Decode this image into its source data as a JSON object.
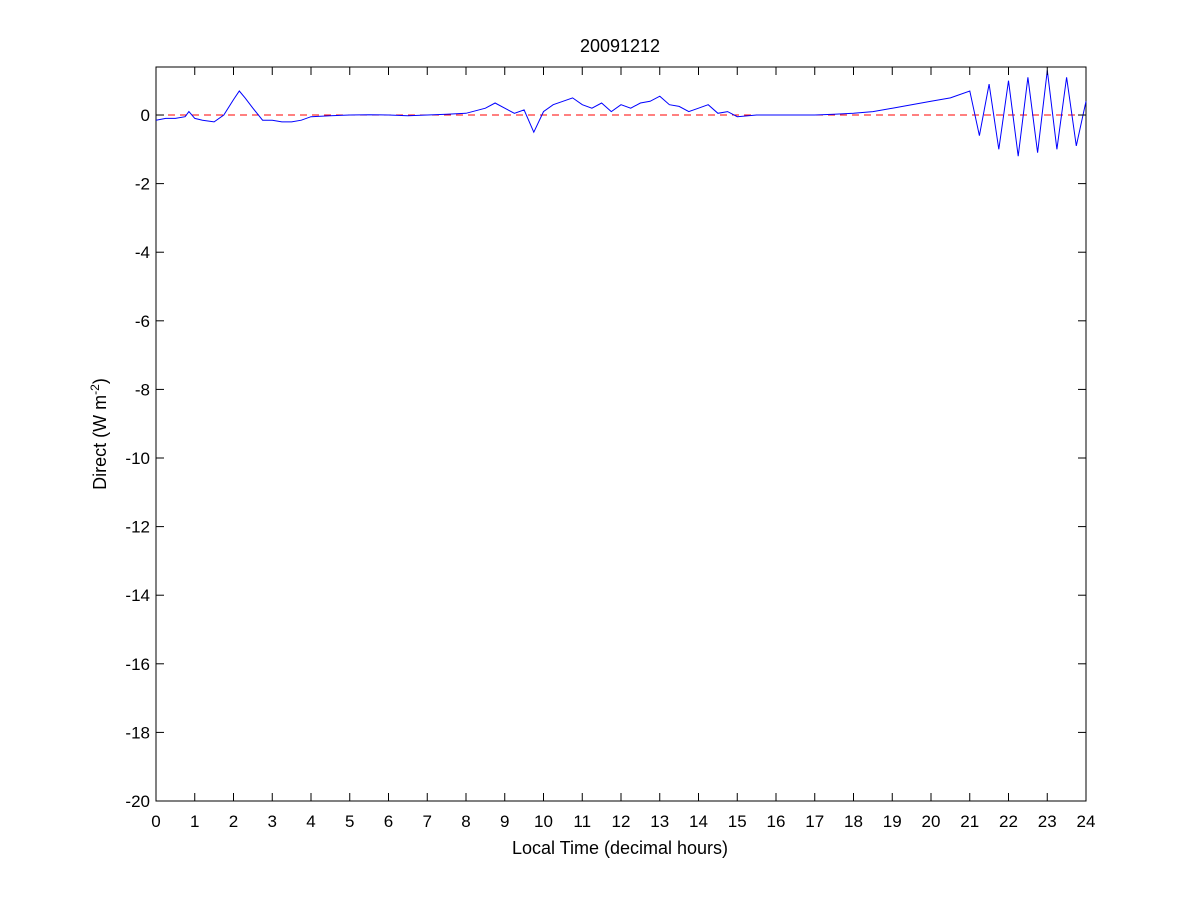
{
  "chart_data": {
    "type": "line",
    "title": "20091212",
    "xlabel": "Local Time (decimal hours)",
    "ylabel": {
      "base": "Direct (W m",
      "superscript": "-2",
      "close": ")"
    },
    "xlim": [
      0,
      24
    ],
    "ylim": [
      -20,
      1.4
    ],
    "x_ticks": [
      0,
      1,
      2,
      3,
      4,
      5,
      6,
      7,
      8,
      9,
      10,
      11,
      12,
      13,
      14,
      15,
      16,
      17,
      18,
      19,
      20,
      21,
      22,
      23,
      24
    ],
    "y_ticks": [
      0,
      -2,
      -4,
      -6,
      -8,
      -10,
      -12,
      -14,
      -16,
      -18,
      -20
    ],
    "grid": false,
    "legend": "none",
    "reference_line": {
      "y": 0,
      "style": "dashed",
      "color": "#ff0000"
    },
    "series": [
      {
        "color": "#0000ff",
        "x": [
          0,
          0.25,
          0.5,
          0.75,
          0.85,
          1.0,
          1.2,
          1.5,
          1.75,
          2.0,
          2.15,
          2.3,
          2.5,
          2.75,
          3.0,
          3.25,
          3.5,
          3.75,
          4.0,
          4.5,
          5.0,
          5.5,
          6.0,
          6.5,
          7.0,
          7.5,
          8.0,
          8.5,
          8.75,
          9.0,
          9.25,
          9.5,
          9.75,
          10.0,
          10.25,
          10.5,
          10.75,
          11.0,
          11.25,
          11.5,
          11.75,
          12.0,
          12.25,
          12.5,
          12.75,
          13.0,
          13.25,
          13.5,
          13.75,
          14.0,
          14.25,
          14.5,
          14.75,
          15.0,
          15.5,
          16.0,
          16.5,
          17.0,
          17.5,
          18.0,
          18.5,
          19.0,
          19.5,
          20.0,
          20.5,
          21.0,
          21.25,
          21.5,
          21.75,
          22.0,
          22.25,
          22.5,
          22.75,
          23.0,
          23.25,
          23.5,
          23.75,
          24.0
        ],
        "y": [
          -0.15,
          -0.1,
          -0.1,
          -0.05,
          0.1,
          -0.1,
          -0.15,
          -0.2,
          0.0,
          0.45,
          0.7,
          0.5,
          0.2,
          -0.15,
          -0.15,
          -0.2,
          -0.2,
          -0.15,
          -0.05,
          -0.02,
          0.0,
          0.01,
          0.0,
          -0.02,
          0.0,
          0.02,
          0.05,
          0.2,
          0.35,
          0.2,
          0.05,
          0.15,
          -0.5,
          0.1,
          0.3,
          0.4,
          0.5,
          0.3,
          0.2,
          0.35,
          0.1,
          0.3,
          0.2,
          0.35,
          0.4,
          0.55,
          0.3,
          0.25,
          0.1,
          0.2,
          0.3,
          0.05,
          0.1,
          -0.05,
          0.0,
          0.0,
          0.0,
          0.0,
          0.02,
          0.05,
          0.1,
          0.2,
          0.3,
          0.4,
          0.5,
          0.7,
          -0.6,
          0.9,
          -1.0,
          1.0,
          -1.2,
          1.1,
          -1.1,
          1.3,
          -1.0,
          1.1,
          -0.9,
          0.4
        ]
      }
    ]
  }
}
